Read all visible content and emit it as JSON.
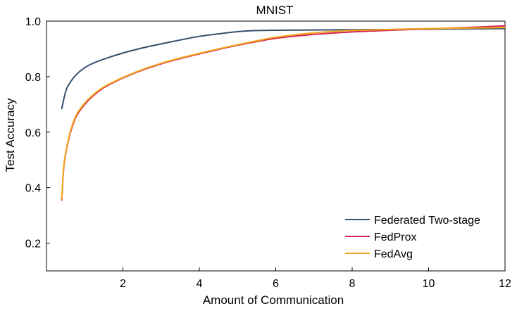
{
  "chart_data": {
    "type": "line",
    "title": "MNIST",
    "xlabel": "Amount of Communication",
    "ylabel": "Test  Accuracy",
    "xlim": [
      0,
      12
    ],
    "ylim": [
      0.1,
      1.0
    ],
    "xticks": [
      2,
      4,
      6,
      8,
      10,
      12
    ],
    "yticks": [
      0.2,
      0.4,
      0.6,
      0.8,
      1.0
    ],
    "xtick_labels": [
      "2",
      "4",
      "6",
      "8",
      "10",
      "12"
    ],
    "ytick_labels": [
      "0.2",
      "0.4",
      "0.6",
      "0.8",
      "1.0"
    ],
    "grid": false,
    "legend_position": "bottom-right",
    "series": [
      {
        "name": "Federated Two-stage",
        "color": "#34506e",
        "x": [
          0.4,
          0.5,
          0.6,
          0.8,
          1.0,
          1.2,
          1.5,
          2.0,
          2.5,
          3.0,
          3.5,
          4.0,
          4.5,
          5.0,
          5.5,
          6.0,
          7.0,
          8.0,
          9.0,
          10.0,
          11.0,
          12.0
        ],
        "y": [
          0.685,
          0.745,
          0.775,
          0.81,
          0.832,
          0.847,
          0.863,
          0.885,
          0.903,
          0.918,
          0.932,
          0.945,
          0.954,
          0.962,
          0.966,
          0.967,
          0.968,
          0.969,
          0.97,
          0.971,
          0.972,
          0.973
        ]
      },
      {
        "name": "FedProx",
        "color": "#d3234f",
        "x": [
          0.4,
          0.45,
          0.5,
          0.6,
          0.7,
          0.8,
          1.0,
          1.2,
          1.5,
          2.0,
          2.5,
          3.0,
          3.5,
          4.0,
          4.5,
          5.0,
          5.5,
          6.0,
          7.0,
          8.0,
          9.0,
          10.0,
          11.0,
          12.0
        ],
        "y": [
          0.355,
          0.47,
          0.52,
          0.585,
          0.63,
          0.662,
          0.7,
          0.728,
          0.76,
          0.795,
          0.823,
          0.846,
          0.865,
          0.882,
          0.898,
          0.913,
          0.926,
          0.938,
          0.952,
          0.961,
          0.967,
          0.972,
          0.977,
          0.983
        ]
      },
      {
        "name": "FedAvg",
        "color": "#f3a81c",
        "x": [
          0.4,
          0.45,
          0.5,
          0.6,
          0.7,
          0.8,
          1.0,
          1.2,
          1.5,
          2.0,
          2.5,
          3.0,
          3.5,
          4.0,
          4.5,
          5.0,
          5.5,
          6.0,
          7.0,
          8.0,
          9.0,
          10.0,
          11.0,
          12.0
        ],
        "y": [
          0.36,
          0.475,
          0.525,
          0.59,
          0.635,
          0.667,
          0.705,
          0.732,
          0.763,
          0.797,
          0.825,
          0.848,
          0.867,
          0.884,
          0.9,
          0.915,
          0.929,
          0.942,
          0.958,
          0.966,
          0.97,
          0.973,
          0.975,
          0.977
        ]
      }
    ]
  }
}
